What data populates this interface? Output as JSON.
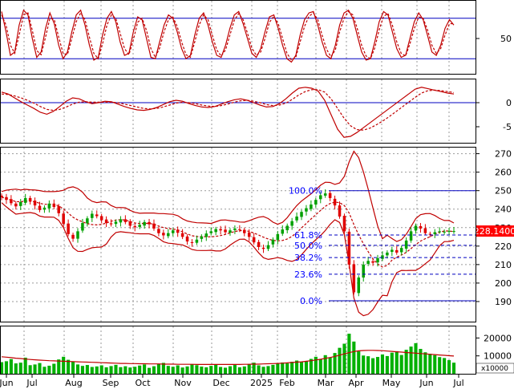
{
  "colors": {
    "background": "#ffffff",
    "frame": "#000000",
    "grid": "#9a9a9a",
    "indicator_line": "#c00000",
    "signal_line": "#c00000",
    "reference_line": "#0000c0",
    "candle_up": "#00a000",
    "candle_down": "#e00000",
    "volume_bar": "#00b000",
    "fib_label": "#0000ff",
    "price_tag_bg": "#ff0000",
    "price_tag_text": "#ffffff"
  },
  "chart_data": [
    {
      "panel": "stochastic",
      "type": "line",
      "ylim": [
        0,
        100
      ],
      "ticks": [
        "50"
      ],
      "tick_values": [
        50
      ],
      "reference_lines": [
        80,
        20
      ],
      "series": [
        {
          "values": [
            90,
            60,
            25,
            30,
            70,
            92,
            85,
            50,
            22,
            30,
            65,
            88,
            72,
            40,
            20,
            30,
            60,
            85,
            92,
            70,
            40,
            18,
            22,
            55,
            80,
            90,
            75,
            45,
            25,
            28,
            60,
            82,
            78,
            50,
            22,
            20,
            45,
            70,
            85,
            80,
            60,
            35,
            20,
            25,
            55,
            80,
            88,
            70,
            45,
            25,
            22,
            40,
            65,
            85,
            90,
            72,
            50,
            28,
            22,
            35,
            60,
            82,
            85,
            65,
            40,
            20,
            15,
            25,
            55,
            78,
            88,
            90,
            70,
            45,
            25,
            20,
            40,
            70,
            88,
            92,
            80,
            55,
            30,
            18,
            20,
            45,
            75,
            90,
            85,
            60,
            35,
            22,
            25,
            50,
            75,
            88,
            78,
            55,
            30,
            25,
            40,
            65,
            78,
            70
          ]
        },
        {
          "values": [
            85,
            70,
            40,
            28,
            55,
            85,
            88,
            62,
            32,
            26,
            52,
            80,
            78,
            52,
            28,
            26,
            50,
            75,
            88,
            78,
            52,
            28,
            20,
            42,
            70,
            85,
            80,
            58,
            35,
            26,
            48,
            74,
            80,
            62,
            35,
            22,
            36,
            60,
            78,
            82,
            68,
            45,
            26,
            22,
            45,
            70,
            85,
            78,
            55,
            33,
            24,
            33,
            55,
            77,
            87,
            78,
            58,
            36,
            25,
            30,
            50,
            74,
            83,
            72,
            50,
            28,
            18,
            22,
            45,
            68,
            83,
            88,
            78,
            55,
            34,
            23,
            33,
            60,
            80,
            90,
            85,
            65,
            40,
            24,
            20,
            36,
            63,
            83,
            87,
            70,
            45,
            28,
            24,
            42,
            65,
            82,
            80,
            63,
            40,
            28,
            35,
            55,
            72,
            72
          ]
        }
      ]
    },
    {
      "panel": "macd",
      "type": "line",
      "ylim": [
        -8,
        4
      ],
      "ticks": [
        "0",
        "-5"
      ],
      "tick_values": [
        0,
        -5
      ],
      "reference_lines": [
        0
      ],
      "series": [
        {
          "values": [
            2.2,
            1.8,
            1.0,
            0.2,
            -0.5,
            -1.2,
            -2.0,
            -2.4,
            -1.8,
            -0.8,
            0.3,
            1.0,
            0.8,
            0.2,
            -0.2,
            0.0,
            0.3,
            0.2,
            -0.3,
            -0.8,
            -1.2,
            -1.5,
            -1.6,
            -1.4,
            -1.0,
            -0.4,
            0.2,
            0.5,
            0.3,
            -0.2,
            -0.6,
            -0.9,
            -1.0,
            -0.8,
            -0.3,
            0.2,
            0.6,
            0.8,
            0.5,
            0.0,
            -0.5,
            -0.9,
            -0.8,
            -0.2,
            0.8,
            2.0,
            3.0,
            3.2,
            3.0,
            2.4,
            0.5,
            -2.5,
            -5.5,
            -7.2,
            -7.0,
            -6.2,
            -5.2,
            -4.2,
            -3.2,
            -2.2,
            -1.2,
            -0.2,
            0.8,
            1.8,
            2.8,
            3.2,
            2.9,
            2.6,
            2.3,
            2.0,
            1.8
          ]
        },
        {
          "values": [
            1.8,
            1.7,
            1.4,
            1.0,
            0.5,
            -0.1,
            -0.8,
            -1.4,
            -1.6,
            -1.4,
            -0.9,
            -0.3,
            0.1,
            0.2,
            0.1,
            0.1,
            0.1,
            0.1,
            0.0,
            -0.3,
            -0.6,
            -0.9,
            -1.2,
            -1.3,
            -1.2,
            -0.9,
            -0.5,
            -0.1,
            0.1,
            0.0,
            -0.2,
            -0.5,
            -0.7,
            -0.8,
            -0.6,
            -0.3,
            0.1,
            0.4,
            0.5,
            0.3,
            0.0,
            -0.4,
            -0.6,
            -0.5,
            -0.1,
            0.7,
            1.6,
            2.3,
            2.7,
            2.7,
            2.2,
            0.8,
            -1.2,
            -3.2,
            -4.8,
            -5.6,
            -5.7,
            -5.3,
            -4.6,
            -3.8,
            -2.9,
            -1.9,
            -0.9,
            0.1,
            1.1,
            2.0,
            2.5,
            2.6,
            2.5,
            2.3,
            2.1
          ]
        }
      ]
    },
    {
      "panel": "price",
      "type": "candlestick",
      "ylim": [
        180,
        272
      ],
      "ticks": [
        "270",
        "260",
        "250",
        "240",
        "230",
        "220",
        "210",
        "200",
        "190"
      ],
      "tick_values": [
        270,
        260,
        250,
        240,
        230,
        220,
        210,
        200,
        190
      ],
      "last_price_label": "228.1400",
      "last_price": 228.14,
      "x_ticks": [
        "Jun",
        "Jul",
        "Aug",
        "Sep",
        "Oct",
        "Nov",
        "Dec",
        "2025",
        "Feb",
        "Mar",
        "Apr",
        "May",
        "Jun",
        "Jul"
      ],
      "closes": [
        246.5,
        245.0,
        243.2,
        241.5,
        243.8,
        246.0,
        244.2,
        242.0,
        239.5,
        240.8,
        243.0,
        241.2,
        237.8,
        232.0,
        226.5,
        224.0,
        228.0,
        232.5,
        235.0,
        237.5,
        236.2,
        234.0,
        232.5,
        231.8,
        233.2,
        234.5,
        233.0,
        231.0,
        230.2,
        231.5,
        233.0,
        231.8,
        229.5,
        227.0,
        225.8,
        227.0,
        228.5,
        227.2,
        225.0,
        222.5,
        221.8,
        223.5,
        225.2,
        226.8,
        228.0,
        229.2,
        228.5,
        227.5,
        228.5,
        229.5,
        228.8,
        227.0,
        225.0,
        222.0,
        219.5,
        218.5,
        220.5,
        223.5,
        226.5,
        229.0,
        231.0,
        233.5,
        236.0,
        238.5,
        240.5,
        242.5,
        245.0,
        247.5,
        248.5,
        246.0,
        242.0,
        236.0,
        228.0,
        210.0,
        195.0,
        203.0,
        210.0,
        212.0,
        211.0,
        213.5,
        215.0,
        216.5,
        218.0,
        216.5,
        219.0,
        223.0,
        228.0,
        231.0,
        229.5,
        227.0,
        226.5,
        227.5,
        228.0,
        227.8,
        228.2,
        228.14
      ],
      "fibonacci": {
        "levels": [
          {
            "label": "100.0%",
            "value": 250.0
          },
          {
            "label": "61.8%",
            "value": 226.0
          },
          {
            "label": "50.0%",
            "value": 220.4
          },
          {
            "label": "38.2%",
            "value": 213.8
          },
          {
            "label": "23.6%",
            "value": 204.8
          },
          {
            "label": "0.0%",
            "value": 190.4
          }
        ]
      }
    },
    {
      "panel": "volume",
      "type": "bar",
      "ticks": [
        "20000",
        "10000"
      ],
      "tick_values": [
        20000,
        10000
      ],
      "multiplier_label": "x10000",
      "ylim": [
        0,
        26000
      ],
      "values": [
        6500,
        7000,
        8200,
        5800,
        6200,
        9000,
        4800,
        5200,
        6000,
        3900,
        4500,
        5600,
        8000,
        9500,
        7800,
        6800,
        5200,
        4400,
        4900,
        3800,
        4100,
        4700,
        3600,
        4300,
        5000,
        3700,
        4200,
        3500,
        3900,
        4600,
        5200,
        3300,
        4200,
        5600,
        6100,
        4400,
        3900,
        4700,
        3500,
        4100,
        5300,
        4800,
        4000,
        3600,
        4400,
        5100,
        3800,
        3400,
        4200,
        4900,
        3600,
        4100,
        5500,
        6200,
        4700,
        3900,
        4300,
        5000,
        5700,
        6300,
        5800,
        6700,
        7400,
        6500,
        7100,
        8300,
        9500,
        8000,
        10400,
        9100,
        11600,
        14500,
        16800,
        22400,
        18000,
        12500,
        10200,
        9800,
        8700,
        9400,
        10800,
        9900,
        11800,
        12600,
        10500,
        13400,
        15200,
        17100,
        13900,
        12000,
        11200,
        10400,
        9300,
        8800,
        7600,
        6200
      ],
      "reference_line_values": [
        9500,
        9300,
        9000,
        8700,
        8500,
        8200,
        8000,
        7800,
        7600,
        7500,
        7300,
        7200,
        7100,
        7000,
        6900,
        6800,
        6700,
        6600,
        6500,
        6400,
        6300,
        6200,
        6100,
        6000,
        5900,
        5800,
        5800,
        5700,
        5700,
        5600,
        5600,
        5500,
        5500,
        5500,
        5400,
        5400,
        5400,
        5300,
        5300,
        5300,
        5300,
        5200,
        5200,
        5200,
        5200,
        5200,
        5200,
        5200,
        5200,
        5200,
        5200,
        5300,
        5300,
        5400,
        5400,
        5500,
        5600,
        5700,
        5800,
        5900,
        6100,
        6300,
        6500,
        6700,
        7000,
        7300,
        7700,
        8100,
        8600,
        9100,
        9700,
        10400,
        11100,
        11800,
        12400,
        12800,
        13000,
        13100,
        13100,
        13000,
        12900,
        12700,
        12500,
        12300,
        12100,
        11900,
        11700,
        11500,
        11300,
        11100,
        10900,
        10700,
        10500,
        10300,
        10100,
        9900
      ]
    }
  ]
}
